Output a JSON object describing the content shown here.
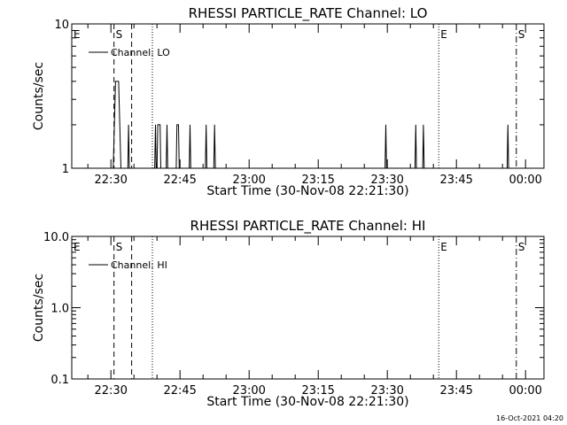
{
  "chart_data": [
    {
      "type": "line",
      "title": "RHESSI PARTICLE_RATE Channel: LO",
      "xlabel": "Start Time (30-Nov-08 22:21:30)",
      "ylabel": "Counts/sec",
      "y_scale": "log",
      "ylim": [
        1,
        10
      ],
      "y_ticks": [
        "1",
        "10"
      ],
      "xlim": [
        "22:21:30",
        "00:04:00"
      ],
      "x_ticks": [
        "22:30",
        "22:45",
        "23:00",
        "23:15",
        "23:30",
        "23:45",
        "00:00"
      ],
      "legend": {
        "label": "Channel: LO",
        "placement": "top-left"
      },
      "grid": false,
      "series": [
        {
          "name": "Channel: LO",
          "points": [
            [
              "22:30:30",
              1
            ],
            [
              "22:31:00",
              4
            ],
            [
              "22:31:40",
              4
            ],
            [
              "22:32:10",
              1
            ],
            [
              "22:33:40",
              1
            ],
            [
              "22:33:50",
              2
            ],
            [
              "22:34:00",
              1
            ],
            [
              "22:39:30",
              1
            ],
            [
              "22:39:40",
              2
            ],
            [
              "22:39:50",
              1
            ],
            [
              "22:40:00",
              1
            ],
            [
              "22:40:10",
              2
            ],
            [
              "22:40:40",
              2
            ],
            [
              "22:40:50",
              1
            ],
            [
              "22:42:00",
              1
            ],
            [
              "22:42:10",
              2
            ],
            [
              "22:42:20",
              1
            ],
            [
              "22:44:10",
              1
            ],
            [
              "22:44:20",
              2
            ],
            [
              "22:44:40",
              2
            ],
            [
              "22:44:50",
              1
            ],
            [
              "22:47:00",
              1
            ],
            [
              "22:47:10",
              2
            ],
            [
              "22:47:20",
              1
            ],
            [
              "22:50:30",
              1
            ],
            [
              "22:50:40",
              2
            ],
            [
              "22:50:50",
              1
            ],
            [
              "22:52:20",
              1
            ],
            [
              "22:52:30",
              2
            ],
            [
              "22:52:40",
              1
            ],
            [
              "23:29:30",
              1
            ],
            [
              "23:29:40",
              2
            ],
            [
              "23:29:50",
              1
            ],
            [
              "23:36:00",
              1
            ],
            [
              "23:36:10",
              2
            ],
            [
              "23:36:20",
              1
            ],
            [
              "23:37:40",
              1
            ],
            [
              "23:37:50",
              2
            ],
            [
              "23:38:00",
              1
            ],
            [
              "23:56:00",
              1
            ],
            [
              "23:56:10",
              2
            ],
            [
              "23:56:20",
              1
            ]
          ]
        }
      ],
      "markers": [
        {
          "label": "E",
          "time": "22:21:30",
          "style": "solid"
        },
        {
          "label": "S",
          "time": "22:30:40",
          "style": "dashed"
        },
        {
          "label": "",
          "time": "22:34:30",
          "style": "dashed"
        },
        {
          "label": "",
          "time": "22:39:00",
          "style": "dotted"
        },
        {
          "label": "E",
          "time": "23:41:10",
          "style": "dotted"
        },
        {
          "label": "S",
          "time": "23:58:00",
          "style": "dashdot"
        }
      ]
    },
    {
      "type": "line",
      "title": "RHESSI PARTICLE_RATE Channel: HI",
      "xlabel": "Start Time (30-Nov-08 22:21:30)",
      "ylabel": "Counts/sec",
      "y_scale": "log",
      "ylim": [
        0.1,
        10
      ],
      "y_ticks": [
        "0.1",
        "1.0",
        "10.0"
      ],
      "xlim": [
        "22:21:30",
        "00:04:00"
      ],
      "x_ticks": [
        "22:30",
        "22:45",
        "23:00",
        "23:15",
        "23:30",
        "23:45",
        "00:00"
      ],
      "legend": {
        "label": "Channel: HI",
        "placement": "top-left"
      },
      "grid": false,
      "series": [
        {
          "name": "Channel: HI",
          "points": []
        }
      ],
      "markers": [
        {
          "label": "E",
          "time": "22:21:30",
          "style": "solid"
        },
        {
          "label": "S",
          "time": "22:30:40",
          "style": "dashed"
        },
        {
          "label": "",
          "time": "22:34:30",
          "style": "dashed"
        },
        {
          "label": "",
          "time": "22:39:00",
          "style": "dotted"
        },
        {
          "label": "E",
          "time": "23:41:10",
          "style": "dotted"
        },
        {
          "label": "S",
          "time": "23:58:00",
          "style": "dashdot"
        }
      ]
    }
  ],
  "footer": {
    "timestamp": "16-Oct-2021 04:20"
  }
}
